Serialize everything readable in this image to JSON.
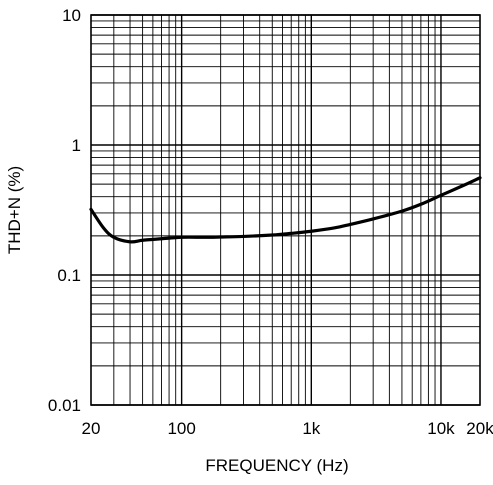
{
  "chart_data": {
    "type": "line",
    "title": "",
    "xlabel": "FREQUENCY (Hz)",
    "ylabel": "THD+N (%)",
    "xscale": "log",
    "yscale": "log",
    "xlim": [
      20,
      20000
    ],
    "ylim": [
      0.01,
      10
    ],
    "grid": true,
    "legend": "none",
    "x_ticks": [
      {
        "value": 20,
        "label": "20"
      },
      {
        "value": 100,
        "label": "100"
      },
      {
        "value": 1000,
        "label": "1k"
      },
      {
        "value": 10000,
        "label": "10k"
      },
      {
        "value": 20000,
        "label": "20k"
      }
    ],
    "y_ticks": [
      {
        "value": 0.01,
        "label": "0.01"
      },
      {
        "value": 0.1,
        "label": "0.1"
      },
      {
        "value": 1,
        "label": "1"
      },
      {
        "value": 10,
        "label": "10"
      }
    ],
    "series": [
      {
        "color": "#000000",
        "x": [
          20,
          25,
          30,
          40,
          50,
          70,
          100,
          150,
          200,
          300,
          500,
          700,
          1000,
          1500,
          2000,
          3000,
          5000,
          7000,
          10000,
          15000,
          20000
        ],
        "y": [
          0.32,
          0.23,
          0.195,
          0.18,
          0.185,
          0.19,
          0.195,
          0.195,
          0.196,
          0.198,
          0.203,
          0.209,
          0.217,
          0.23,
          0.245,
          0.27,
          0.31,
          0.35,
          0.41,
          0.49,
          0.56
        ]
      }
    ]
  },
  "colors": {
    "axis": "#000000",
    "grid": "#000000",
    "background": "#ffffff"
  }
}
